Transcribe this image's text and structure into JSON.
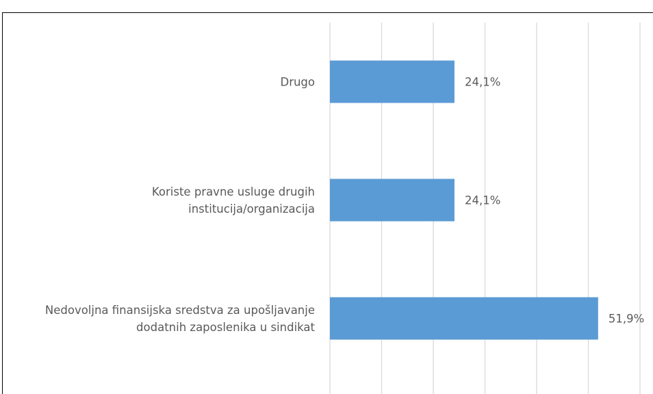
{
  "chart_data": {
    "type": "bar",
    "orientation": "horizontal",
    "categories": [
      "Drugo",
      "Koriste pravne usluge drugih institucija/organizacija",
      "Nedovoljna finansijska sredstva za upošljavanje dodatnih zaposlenika u sindikat"
    ],
    "values": [
      24.1,
      24.1,
      51.9
    ],
    "value_labels": [
      "24,1%",
      "24,1%",
      "51,9%"
    ],
    "color": "#5b9bd5",
    "xlim": [
      0,
      60
    ],
    "xticks": [
      0,
      10,
      20,
      30,
      40,
      50,
      60
    ],
    "grid": true
  }
}
